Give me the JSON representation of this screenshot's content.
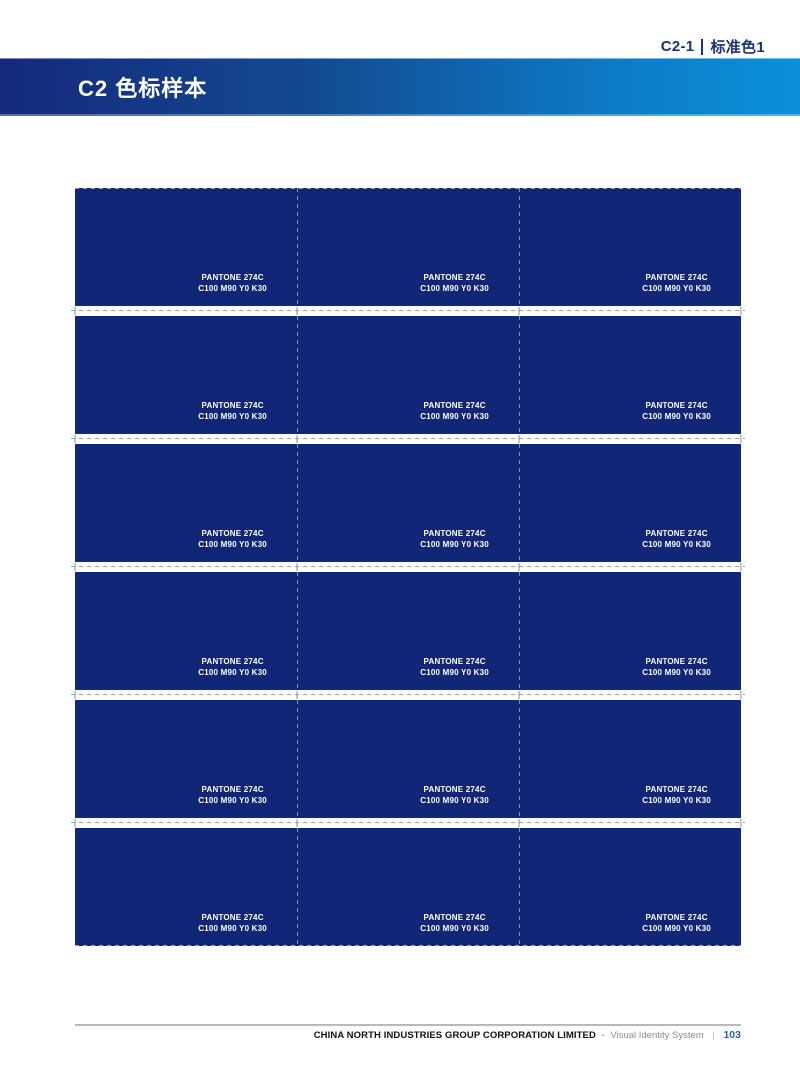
{
  "tab": {
    "code": "C2-1",
    "name": "标准色1"
  },
  "title_bar": {
    "title": "C2 色标样本"
  },
  "swatch_grid": {
    "rows": 6,
    "columns": 3,
    "swatch": {
      "pantone": "PANTONE 274C",
      "cmyk": "C100 M90 Y0 K30"
    },
    "color_hex": "#112677"
  },
  "footer": {
    "company": "CHINA NORTH INDUSTRIES GROUP CORPORATION LIMITED",
    "separator": "-",
    "system": "Visual Identity System",
    "divider": "|",
    "page_number": "103"
  },
  "colors": {
    "swatch_blue": "#112677",
    "header_gradient_start": "#15297e",
    "header_gradient_end": "#0b90da",
    "tab_text": "#1b3080",
    "page_number_blue": "#2a5cab",
    "cut_line_gray": "#98a0aa",
    "footer_rule_gray": "#b9b9b9"
  }
}
